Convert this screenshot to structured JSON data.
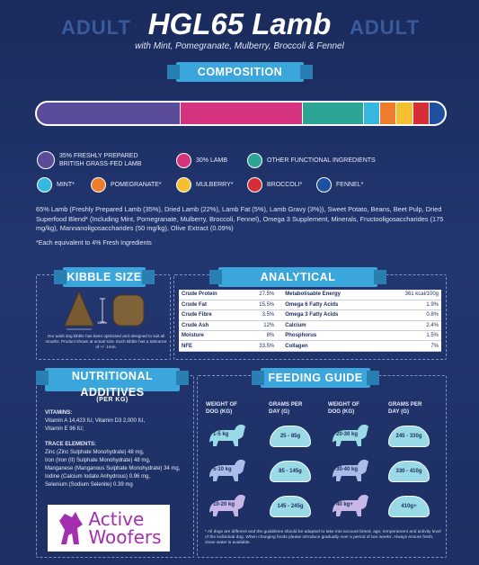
{
  "header": {
    "left_word": "ADULT",
    "right_word": "ADULT",
    "title": "HGL65 Lamb",
    "subtitle": "with Mint, Pomegranate, Mulberry, Broccoli & Fennel"
  },
  "composition": {
    "banner": "COMPOSITION",
    "segments": [
      {
        "name": "35% FRESHLY PREPARED BRITISH GRASS-FED LAMB",
        "share": 35,
        "color": "#5a4b9b"
      },
      {
        "name": "30% LAMB",
        "share": 30,
        "color": "#d6337f"
      },
      {
        "name": "OTHER FUNCTIONAL INGREDIENTS",
        "share": 15,
        "color": "#2aa596"
      },
      {
        "name": "MINT*",
        "share": 4,
        "color": "#35b7e0"
      },
      {
        "name": "POMEGRANATE*",
        "share": 4,
        "color": "#ef7c2c"
      },
      {
        "name": "MULBERRY*",
        "share": 4,
        "color": "#f4c030"
      },
      {
        "name": "BROCCOLI*",
        "share": 4,
        "color": "#d62e36"
      },
      {
        "name": "FENNEL*",
        "share": 4,
        "color": "#1f4fa0"
      }
    ],
    "legend": {
      "lamb_fresh_line1": "35% FRESHLY PREPARED",
      "lamb_fresh_line2": "BRITISH GRASS-FED LAMB",
      "lamb": "30% LAMB",
      "other": "OTHER FUNCTIONAL INGREDIENTS",
      "mint": "MINT*",
      "pomegranate": "POMEGRANATE*",
      "mulberry": "MULBERRY*",
      "broccoli": "BROCCOLI*",
      "fennel": "FENNEL*"
    },
    "ingredients": "65% Lamb (Freshly Prepared Lamb (35%), Dried Lamb (22%), Lamb Fat (5%), Lamb Gravy (3%)), Sweet Potato, Beans, Beet Pulp, Dried Superfood Blend* (Including Mint, Pomegranate, Mulberry, Broccoli, Fennel), Omega 3 Supplement, Minerals, Fructooligosaccharides (175 mg/kg), Mannanoligosaccharides (50 mg/kg), Olive Extract (0.09%)",
    "footnote": "*Each equivalent to 4% Fresh Ingredients"
  },
  "kibble": {
    "banner": "KIBBLE SIZE",
    "dim_label": "11mm",
    "note": "Our adult dog kibble has been optimised and designed to suit all mouths. Product shown at actual size. Each kibble has a tolerance of +/- 1mm."
  },
  "analytical": {
    "banner": "ANALYTICAL CONSTITUENTS",
    "rows": [
      {
        "l": "Crude Protein",
        "lv": "27.5%",
        "r": "Metabolisable Energy",
        "rv": "361 kcal/100g"
      },
      {
        "l": "Crude Fat",
        "lv": "15.5%",
        "r": "Omega 6 Fatty Acids",
        "rv": "1.9%"
      },
      {
        "l": "Crude Fibre",
        "lv": "3.5%",
        "r": "Omega 3 Fatty Acids",
        "rv": "0.8%"
      },
      {
        "l": "Crude Ash",
        "lv": "12%",
        "r": "Calcium",
        "rv": "2.4%"
      },
      {
        "l": "Moisture",
        "lv": "8%",
        "r": "Phosphorus",
        "rv": "1.5%"
      },
      {
        "l": "NFE",
        "lv": "33.5%",
        "r": "Collagen",
        "rv": "7%"
      }
    ]
  },
  "additives": {
    "banner": "NUTRITIONAL ADDITIVES",
    "banner_sub": "(PER KG)",
    "vitamins_head": "VITAMINS:",
    "vitamins_line1": "Vitamin A 14,423 IU, Vitamin D3 2,000 IU,",
    "vitamins_line2": "Vitamin E 96 IU;",
    "trace_head": "TRACE ELEMENTS:",
    "trace": [
      "Zinc (Zinc Sulphate Monohydrate) 48 mg,",
      "Iron (Iron (II) Sulphate Monohydrate) 48 mg,",
      "Manganese (Manganous Sulphate Monohydrate) 34 mg,",
      "Iodine (Calcium Iodate Anhydrous) 0.96 mg,",
      "Selenium (Sodium Selenite) 0.39 mg"
    ]
  },
  "feeding": {
    "banner": "FEEDING GUIDE",
    "col_weight": "WEIGHT OF DOG (kg)",
    "col_grams": "GRAMS PER DAY (g)",
    "rows": [
      {
        "w1": "1-5 kg",
        "g1": "25 - 85g",
        "w2": "20-30 kg",
        "g2": "245 - 330g"
      },
      {
        "w1": "5-10 kg",
        "g1": "85 - 145g",
        "w2": "30-40 kg",
        "g2": "330 - 410g"
      },
      {
        "w1": "10-20 kg",
        "g1": "145 - 245g",
        "w2": "40 kg+",
        "g2": "410g+"
      }
    ],
    "note": "* All dogs are different and the guidelines should be adapted to take into account breed, age, temperament and activity level of the individual dog. When changing foods please introduce gradually over a period of two weeks. Always ensure fresh, clean water is available."
  },
  "logo": {
    "line1": "Active",
    "line2": "Woofers"
  }
}
